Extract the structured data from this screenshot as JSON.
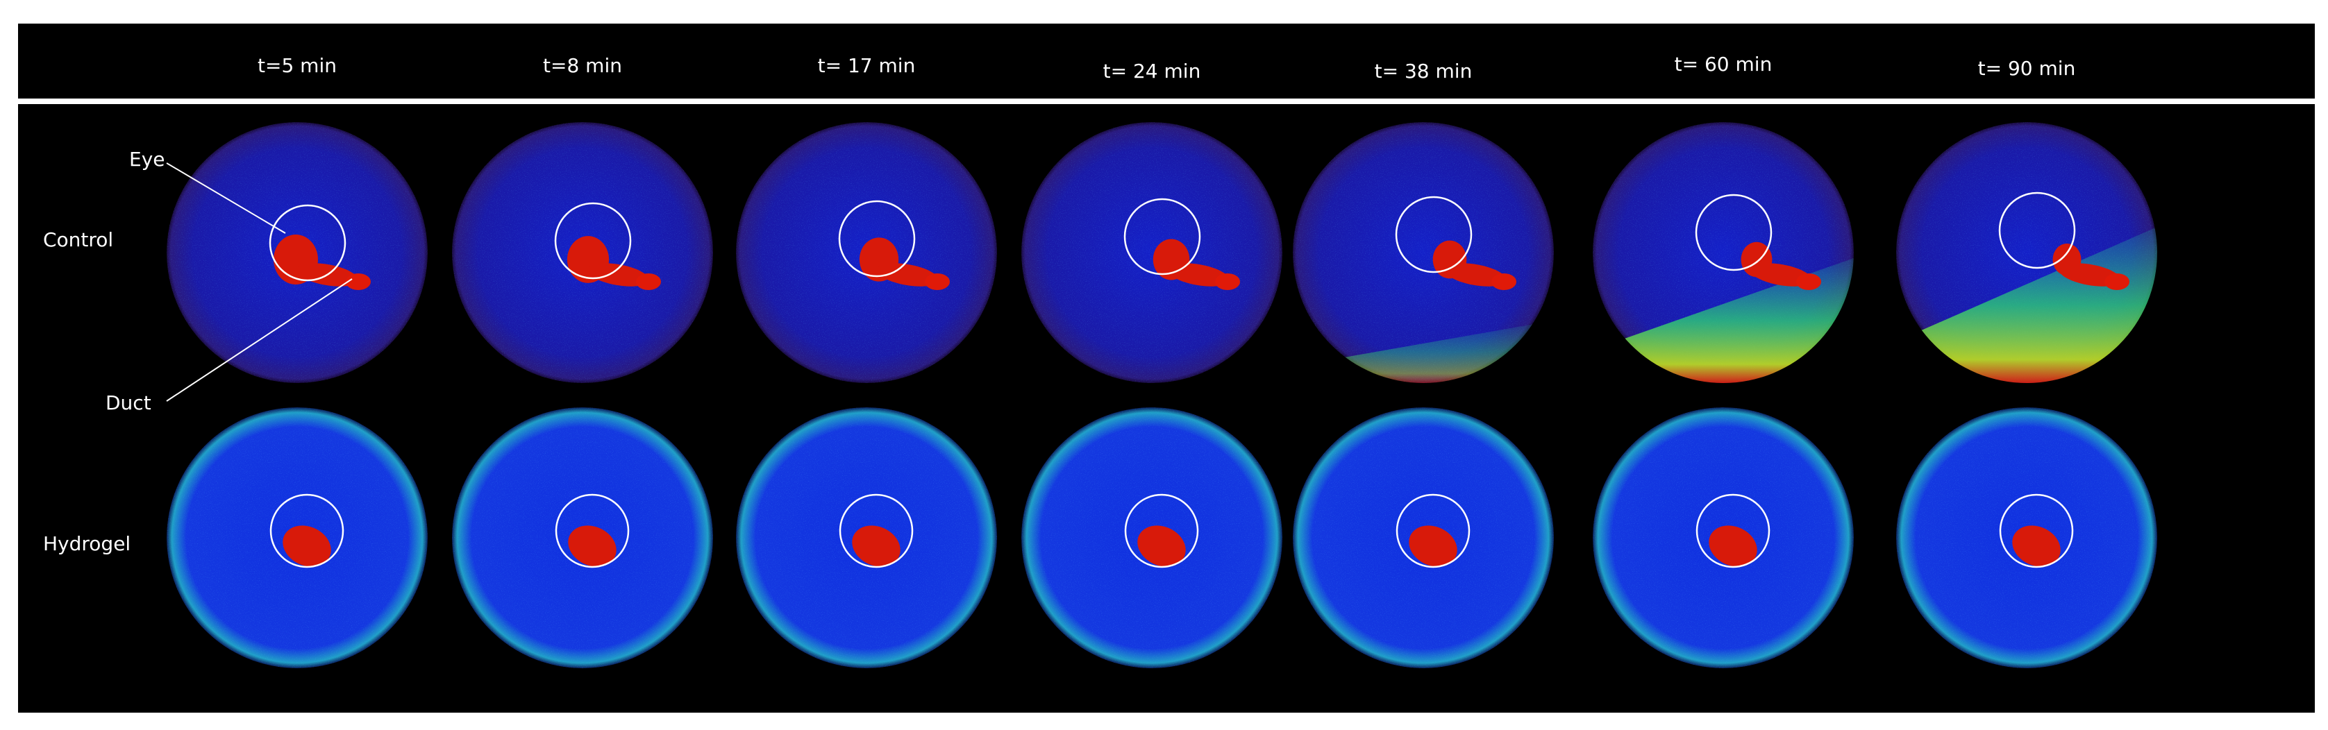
{
  "columns": [
    "t=5 min",
    "t=8 min",
    "t= 17 min",
    "t= 24 min",
    "t= 38 min",
    "t= 60 min",
    "t= 90 min"
  ],
  "rows": [
    "Control",
    "Hydrogel"
  ],
  "annotations": {
    "eye": "Eye",
    "duct": "Duct"
  }
}
